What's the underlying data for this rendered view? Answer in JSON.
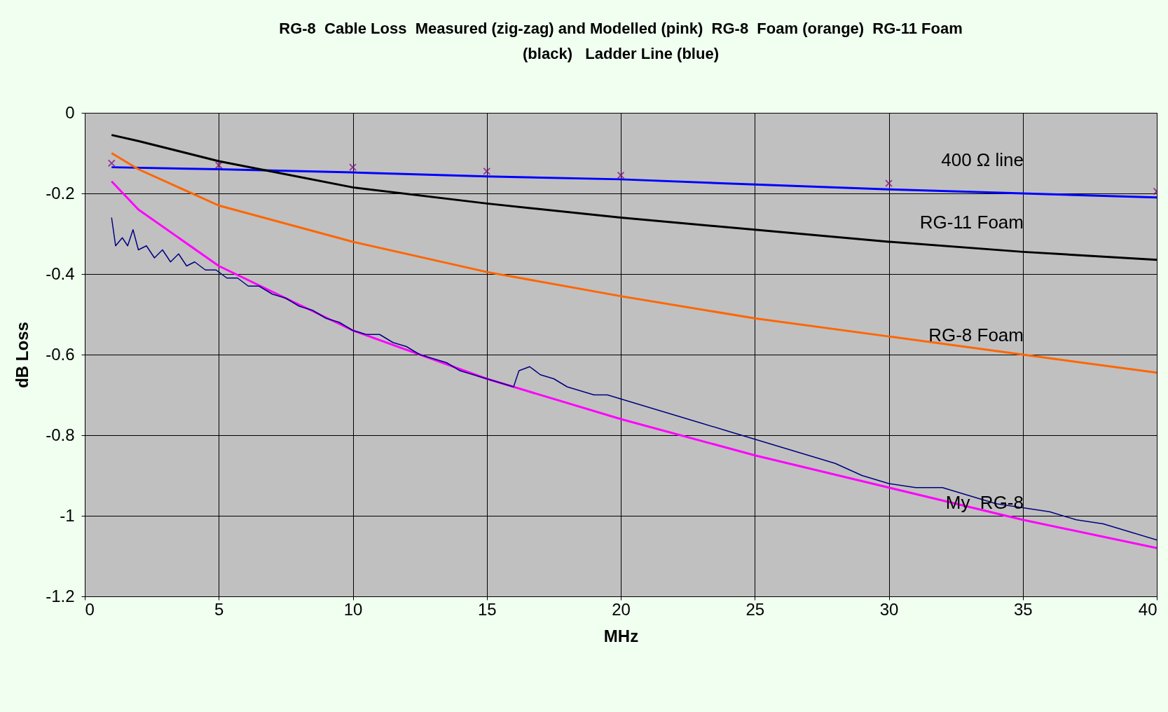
{
  "chart_data": {
    "type": "line",
    "title": "RG-8  Cable Loss  Measured (zig-zag) and Modelled (pink)  RG-8  Foam (orange)  RG-11 Foam (black)   Ladder Line (blue)",
    "xlabel": "MHz",
    "ylabel": "dB Loss",
    "xlim": [
      0,
      40
    ],
    "xticks": [
      0,
      5,
      10,
      15,
      20,
      25,
      30,
      35,
      40
    ],
    "ylim": [
      -1.2,
      0
    ],
    "yticks": [
      -1.2,
      -1,
      -0.8,
      -0.6,
      -0.4,
      -0.2,
      0
    ],
    "grid": true,
    "line_style": "solid",
    "series": [
      {
        "name": "400 Ω line",
        "color": "#0000ff",
        "x": [
          1,
          5,
          10,
          15,
          20,
          25,
          30,
          35,
          40
        ],
        "values": [
          -0.135,
          -0.14,
          -0.148,
          -0.158,
          -0.165,
          -0.178,
          -0.19,
          -0.2,
          -0.21
        ]
      },
      {
        "type": "scatter",
        "marker": "cross",
        "color": "#800080",
        "x": [
          1,
          5,
          10,
          15,
          20,
          30,
          40
        ],
        "values": [
          -0.125,
          -0.13,
          -0.135,
          -0.145,
          -0.155,
          -0.175,
          -0.195
        ]
      },
      {
        "name": "RG-11 Foam",
        "color": "#000000",
        "x": [
          1,
          2,
          5,
          10,
          15,
          20,
          25,
          30,
          35,
          40
        ],
        "values": [
          -0.055,
          -0.07,
          -0.12,
          -0.185,
          -0.225,
          -0.26,
          -0.29,
          -0.32,
          -0.345,
          -0.365
        ]
      },
      {
        "name": "RG-8 Foam",
        "color": "#ff6600",
        "x": [
          1,
          2,
          5,
          10,
          15,
          20,
          25,
          30,
          35,
          40
        ],
        "values": [
          -0.1,
          -0.14,
          -0.23,
          -0.32,
          -0.395,
          -0.455,
          -0.51,
          -0.555,
          -0.6,
          -0.645
        ]
      },
      {
        "color": "#ff00ff",
        "x": [
          1,
          2,
          5,
          10,
          15,
          20,
          25,
          30,
          35,
          40
        ],
        "values": [
          -0.17,
          -0.24,
          -0.38,
          -0.54,
          -0.66,
          -0.76,
          -0.85,
          -0.93,
          -1.01,
          -1.08
        ]
      },
      {
        "name": "My  RG-8",
        "color": "#000080",
        "x": [
          1,
          1.15,
          1.4,
          1.6,
          1.8,
          2,
          2.3,
          2.6,
          2.9,
          3.2,
          3.5,
          3.8,
          4.1,
          4.5,
          4.9,
          5.3,
          5.7,
          6.1,
          6.5,
          7,
          7.5,
          8,
          8.5,
          9,
          9.5,
          10,
          10.5,
          11,
          11.5,
          12,
          12.5,
          13,
          13.5,
          14,
          14.5,
          15,
          15.5,
          16,
          16.2,
          16.6,
          17,
          17.5,
          18,
          18.5,
          19,
          19.5,
          20,
          21,
          22,
          23,
          24,
          25,
          26,
          27,
          28,
          29,
          30,
          31,
          32,
          33,
          34,
          35,
          36,
          37,
          38,
          39,
          40
        ],
        "values": [
          -0.26,
          -0.33,
          -0.31,
          -0.33,
          -0.29,
          -0.34,
          -0.33,
          -0.36,
          -0.34,
          -0.37,
          -0.35,
          -0.38,
          -0.37,
          -0.39,
          -0.39,
          -0.41,
          -0.41,
          -0.43,
          -0.43,
          -0.45,
          -0.46,
          -0.48,
          -0.49,
          -0.51,
          -0.52,
          -0.54,
          -0.55,
          -0.55,
          -0.57,
          -0.58,
          -0.6,
          -0.61,
          -0.62,
          -0.64,
          -0.65,
          -0.66,
          -0.67,
          -0.68,
          -0.64,
          -0.63,
          -0.65,
          -0.66,
          -0.68,
          -0.69,
          -0.7,
          -0.7,
          -0.71,
          -0.73,
          -0.75,
          -0.77,
          -0.79,
          -0.81,
          -0.83,
          -0.85,
          -0.87,
          -0.9,
          -0.92,
          -0.93,
          -0.93,
          -0.95,
          -0.97,
          -0.98,
          -0.99,
          -1.01,
          -1.02,
          -1.04,
          -1.06
        ]
      }
    ]
  }
}
